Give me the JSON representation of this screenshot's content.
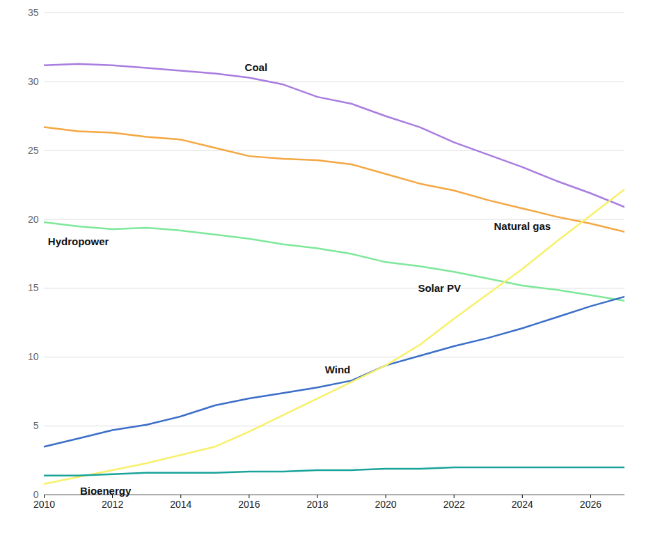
{
  "chart_data": {
    "type": "line",
    "x": [
      2010,
      2011,
      2012,
      2013,
      2014,
      2015,
      2016,
      2017,
      2018,
      2019,
      2020,
      2021,
      2022,
      2023,
      2024,
      2025,
      2026,
      2027
    ],
    "series": [
      {
        "name": "Coal",
        "color": "#a97de0",
        "values": [
          31.2,
          31.3,
          31.2,
          31.0,
          30.8,
          30.6,
          30.3,
          29.8,
          28.9,
          28.4,
          27.5,
          26.7,
          25.6,
          24.7,
          23.8,
          22.8,
          21.9,
          20.9
        ]
      },
      {
        "name": "Natural gas",
        "color": "#f5a742",
        "values": [
          26.7,
          26.4,
          26.3,
          26.0,
          25.8,
          25.2,
          24.6,
          24.4,
          24.3,
          24.0,
          23.3,
          22.6,
          22.1,
          21.4,
          20.8,
          20.2,
          19.7,
          19.1
        ]
      },
      {
        "name": "Hydropower",
        "color": "#7ee89a",
        "values": [
          19.8,
          19.5,
          19.3,
          19.4,
          19.2,
          18.9,
          18.6,
          18.2,
          17.9,
          17.5,
          16.9,
          16.6,
          16.2,
          15.7,
          15.2,
          14.9,
          14.5,
          14.1
        ]
      },
      {
        "name": "Wind",
        "color": "#3b6fc8",
        "values": [
          3.5,
          4.1,
          4.7,
          5.1,
          5.7,
          6.5,
          7.0,
          7.4,
          7.8,
          8.3,
          9.4,
          10.1,
          10.8,
          11.4,
          12.1,
          12.9,
          13.7,
          14.4
        ]
      },
      {
        "name": "Solar PV",
        "color": "#f7f06a",
        "values": [
          0.8,
          1.3,
          1.8,
          2.3,
          2.9,
          3.5,
          4.6,
          5.8,
          7.0,
          8.2,
          9.4,
          10.9,
          12.8,
          14.6,
          16.4,
          18.4,
          20.3,
          22.2
        ]
      },
      {
        "name": "Bioenergy",
        "color": "#1aa39a",
        "values": [
          1.4,
          1.4,
          1.5,
          1.6,
          1.6,
          1.6,
          1.7,
          1.7,
          1.8,
          1.8,
          1.9,
          1.9,
          2.0,
          2.0,
          2.0,
          2.0,
          2.0,
          2.0
        ]
      }
    ],
    "xlim": [
      2010,
      2027
    ],
    "xticks": [
      2010,
      2012,
      2014,
      2016,
      2018,
      2020,
      2022,
      2024,
      2026
    ],
    "ylim": [
      0,
      35
    ],
    "yticks": [
      0,
      5,
      10,
      15,
      20,
      25,
      30,
      35
    ],
    "grid": true
  }
}
